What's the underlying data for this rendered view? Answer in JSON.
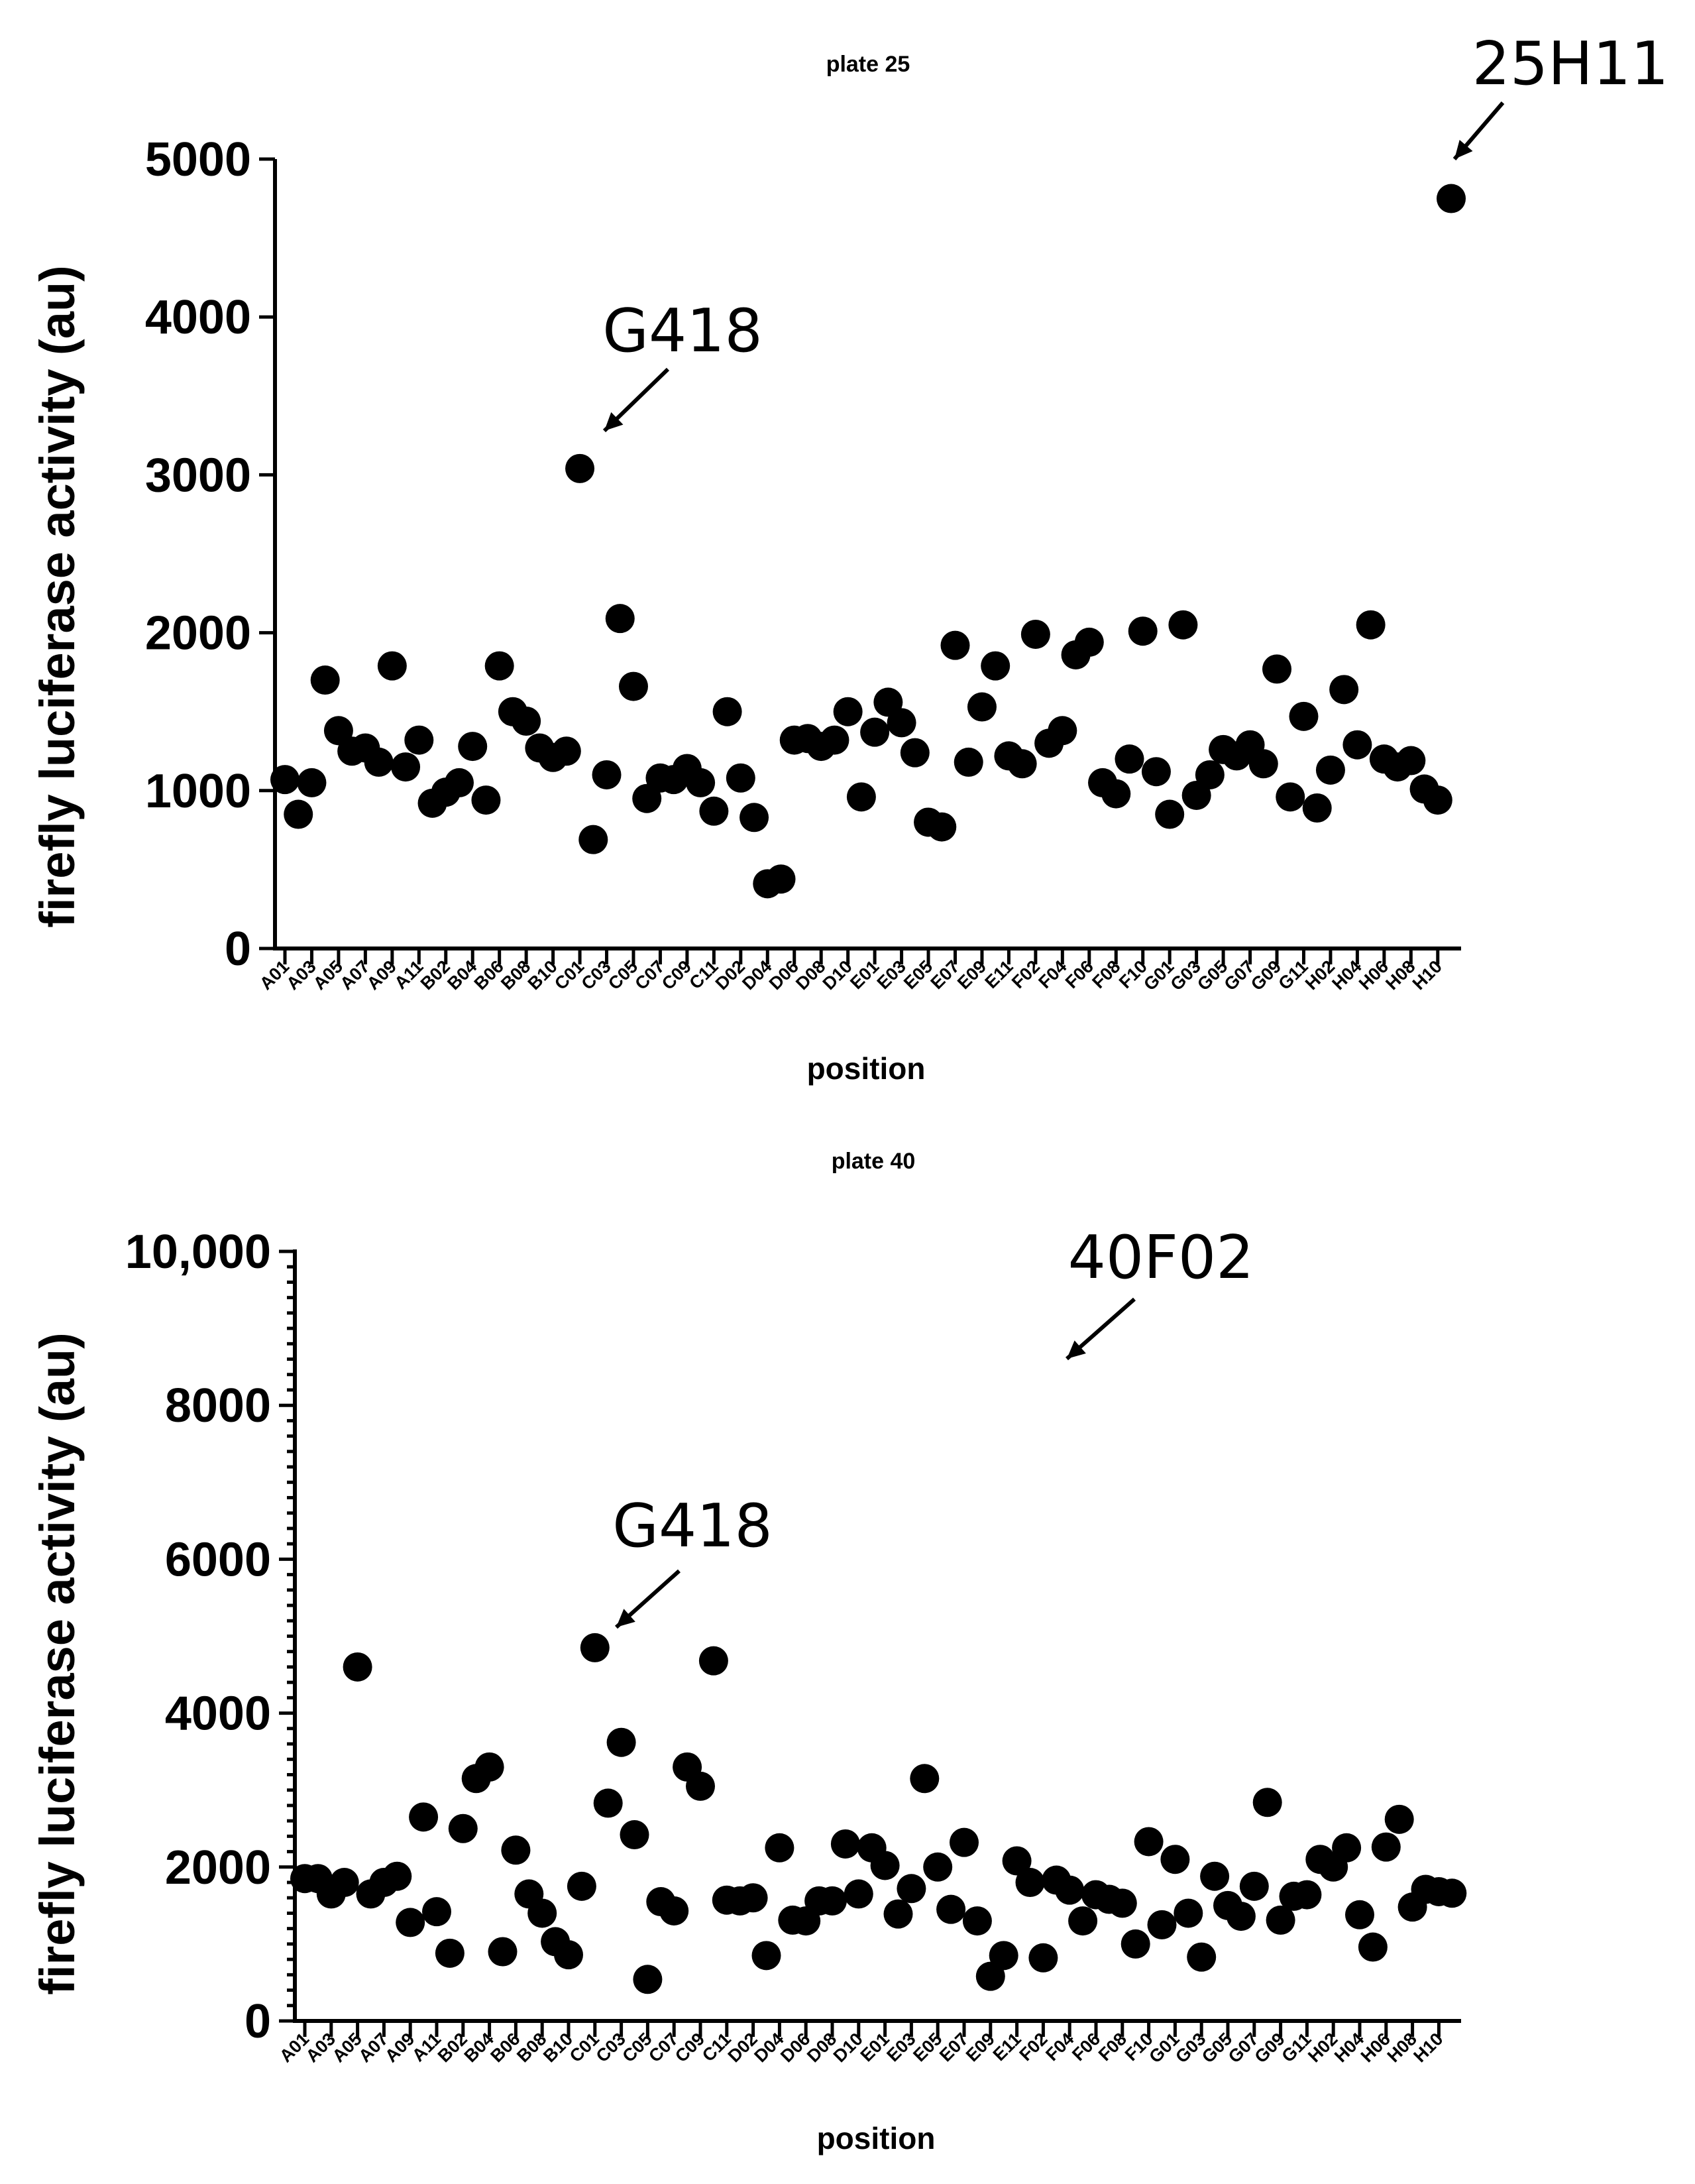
{
  "chart_data": [
    {
      "type": "scatter",
      "title": "plate 25",
      "xlabel": "position",
      "ylabel": "firefly luciferase activity (au)",
      "ylim": [
        0,
        5000
      ],
      "yticks": [
        0,
        1000,
        2000,
        3000,
        4000,
        5000
      ],
      "ytick_labels": [
        "0",
        "1000",
        "2000",
        "3000",
        "4000",
        "5000"
      ],
      "minor_ticks": false,
      "categories": [
        "A01",
        "A02",
        "A03",
        "A04",
        "A05",
        "A06",
        "A07",
        "A08",
        "A09",
        "A10",
        "A11",
        "A12",
        "B01",
        "B02",
        "B03",
        "B04",
        "B05",
        "B06",
        "B07",
        "B08",
        "B09",
        "B10",
        "B11",
        "C01",
        "C02",
        "C03",
        "C04",
        "C05",
        "C06",
        "C07",
        "C08",
        "C09",
        "C10",
        "C11",
        "D01",
        "D02",
        "D03",
        "D04",
        "D05",
        "D06",
        "D07",
        "D08",
        "D09",
        "D10",
        "D11",
        "E01",
        "E02",
        "E03",
        "E04",
        "E05",
        "E06",
        "E07",
        "E08",
        "E09",
        "E10",
        "E11",
        "F01",
        "F02",
        "F03",
        "F04",
        "F05",
        "F06",
        "F07",
        "F08",
        "F09",
        "F10",
        "F11",
        "G01",
        "G02",
        "G03",
        "G04",
        "G05",
        "G06",
        "G07",
        "G08",
        "G09",
        "G10",
        "G11",
        "H01",
        "H02",
        "H03",
        "H04",
        "H05",
        "H06",
        "H07",
        "H08",
        "H09",
        "H10"
      ],
      "tick_labels": [
        "A01",
        "A03",
        "A05",
        "A07",
        "A09",
        "A11",
        "B02",
        "B04",
        "B06",
        "B08",
        "B10",
        "C01",
        "C03",
        "C05",
        "C07",
        "C09",
        "C11",
        "D02",
        "D04",
        "D06",
        "D08",
        "D10",
        "E01",
        "E03",
        "E05",
        "E07",
        "E09",
        "E11",
        "F02",
        "F04",
        "F06",
        "F08",
        "F10",
        "G01",
        "G03",
        "G05",
        "G07",
        "G09",
        "G11",
        "H02",
        "H04",
        "H06",
        "H08",
        "H10"
      ],
      "values": [
        1070,
        850,
        1050,
        1700,
        1380,
        1250,
        1270,
        1180,
        1790,
        1150,
        1320,
        920,
        990,
        1050,
        1280,
        940,
        1790,
        1500,
        1440,
        1270,
        1210,
        1250,
        3040,
        690,
        1100,
        2090,
        1660,
        950,
        1080,
        1070,
        1140,
        1050,
        870,
        1500,
        1080,
        830,
        410,
        440,
        1320,
        1330,
        1280,
        1320,
        1500,
        960,
        1370,
        1560,
        1430,
        1240,
        800,
        770,
        1920,
        1180,
        1530,
        1790,
        1220,
        1170,
        1990,
        1300,
        1380,
        1860,
        1940,
        1050,
        980,
        1200,
        2010,
        1120,
        850,
        2050,
        970,
        1100,
        1260,
        1220,
        1290,
        1170,
        1770,
        960,
        1470,
        890,
        1130,
        1640,
        1290,
        2050,
        1200,
        1150,
        1190,
        1010,
        940,
        4750
      ],
      "annotations": [
        {
          "text": "G418",
          "category": "C01"
        },
        {
          "text": "25H11",
          "category": "H10"
        }
      ]
    },
    {
      "type": "scatter",
      "title": "plate 40",
      "xlabel": "position",
      "ylabel": "firefly luciferase activity (au)",
      "ylim": [
        0,
        10000
      ],
      "yticks": [
        0,
        2000,
        4000,
        6000,
        8000,
        10000
      ],
      "ytick_labels": [
        "0",
        "2000",
        "4000",
        "6000",
        "8000",
        "10,000"
      ],
      "minor_ticks": true,
      "minor_tick_step": 200,
      "categories": [
        "A01",
        "A02",
        "A03",
        "A04",
        "A05",
        "A06",
        "A07",
        "A08",
        "A09",
        "A10",
        "A11",
        "A12",
        "B01",
        "B02",
        "B03",
        "B04",
        "B05",
        "B06",
        "B07",
        "B08",
        "B09",
        "B10",
        "B11",
        "C01",
        "C02",
        "C03",
        "C04",
        "C05",
        "C06",
        "C07",
        "C08",
        "C09",
        "C10",
        "C11",
        "D01",
        "D02",
        "D03",
        "D04",
        "D05",
        "D06",
        "D07",
        "D08",
        "D09",
        "D10",
        "D11",
        "E01",
        "E02",
        "E03",
        "E04",
        "E05",
        "E06",
        "E07",
        "E08",
        "E09",
        "E10",
        "E11",
        "F01",
        "F02",
        "F03",
        "F04",
        "F05",
        "F06",
        "F07",
        "F08",
        "F09",
        "F10",
        "F11",
        "G01",
        "G02",
        "G03",
        "G04",
        "G05",
        "G06",
        "G07",
        "G08",
        "G09",
        "G10",
        "G11",
        "H01",
        "H02",
        "H03",
        "H04",
        "H05",
        "H06",
        "H07",
        "H08",
        "H09",
        "H10"
      ],
      "tick_labels": [
        "A01",
        "A03",
        "A05",
        "A07",
        "A09",
        "A11",
        "B02",
        "B04",
        "B06",
        "B08",
        "B10",
        "C01",
        "C03",
        "C05",
        "C07",
        "C09",
        "C11",
        "D02",
        "D04",
        "D06",
        "D08",
        "D10",
        "E01",
        "E03",
        "E05",
        "E07",
        "E09",
        "E11",
        "F02",
        "F04",
        "F06",
        "F08",
        "F10",
        "G01",
        "G03",
        "G05",
        "G07",
        "G09",
        "G11",
        "H02",
        "H04",
        "H06",
        "H08",
        "H10"
      ],
      "values": [
        1850,
        1850,
        1650,
        1800,
        4600,
        1650,
        1800,
        1880,
        1280,
        2650,
        1420,
        880,
        2500,
        3150,
        3300,
        900,
        2220,
        1650,
        1400,
        1030,
        860,
        1750,
        4850,
        2830,
        3620,
        2420,
        540,
        1550,
        1430,
        3300,
        3050,
        4680,
        1570,
        1560,
        1600,
        850,
        2250,
        1310,
        1300,
        1560,
        1560,
        2300,
        1650,
        2250,
        2020,
        1390,
        1720,
        3150,
        2000,
        1450,
        2320,
        1300,
        580,
        850,
        2080,
        1800,
        820,
        1830,
        1700,
        1300,
        1640,
        1580,
        1530,
        1000,
        2330,
        1250,
        2100,
        1400,
        830,
        1880,
        1500,
        1360,
        1750,
        2840,
        1310,
        1620,
        1640,
        2100,
        2000,
        2250,
        1380,
        960,
        2260,
        2620,
        1480,
        1710,
        1680,
        1660
      ],
      "annotations": [
        {
          "text": "G418",
          "category": "C01"
        },
        {
          "text": "40F02",
          "category": "F02"
        }
      ]
    }
  ]
}
